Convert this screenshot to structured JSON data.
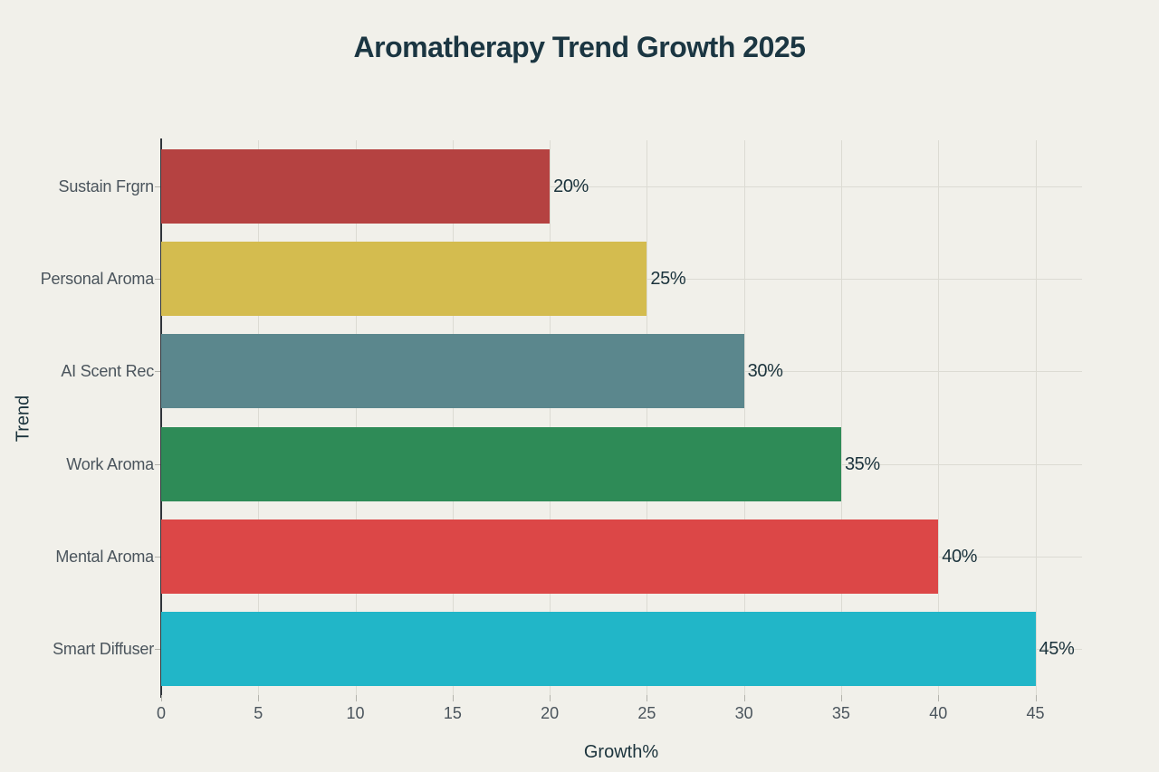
{
  "chart_data": {
    "type": "bar",
    "orientation": "horizontal",
    "title": "Aromatherapy Trend Growth 2025",
    "xlabel": "Growth%",
    "ylabel": "Trend",
    "categories_top_to_bottom": [
      "Sustain Frgrn",
      "Personal Aroma",
      "AI Scent Rec",
      "Work Aroma",
      "Mental Aroma",
      "Smart Diffuser"
    ],
    "values": [
      20,
      25,
      30,
      35,
      40,
      45
    ],
    "value_labels": [
      "20%",
      "25%",
      "30%",
      "35%",
      "40%",
      "45%"
    ],
    "bar_colors": [
      "#b54241",
      "#d4bc4f",
      "#5b878d",
      "#2e8b57",
      "#dc4747",
      "#21b6c8"
    ],
    "x_ticks": [
      0,
      5,
      10,
      15,
      20,
      25,
      30,
      35,
      40,
      45
    ],
    "xlim": [
      0,
      47.4
    ],
    "grid": true,
    "legend": "none",
    "background_color": "#f1f0ea",
    "grid_color": "#dcdbd3",
    "axis_line_color": "#30343a",
    "tick_label_color": "#4a545c",
    "text_color": "#1b333c"
  }
}
